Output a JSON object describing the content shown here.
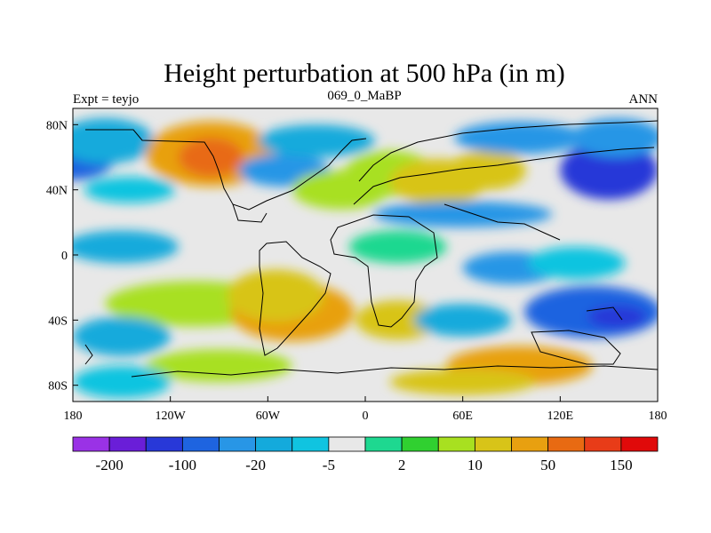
{
  "chart_data": {
    "type": "heatmap",
    "title": "Height perturbation at 500 hPa (in m)",
    "left_label": "Expt = teyjo",
    "center_label": "069_0_MaBP",
    "right_label": "ANN",
    "x_range": [
      -180,
      180
    ],
    "y_range": [
      -90,
      90
    ],
    "x_ticks": [
      {
        "value": -180,
        "label": "180"
      },
      {
        "value": -120,
        "label": "120W"
      },
      {
        "value": -60,
        "label": "60W"
      },
      {
        "value": 0,
        "label": "0"
      },
      {
        "value": 60,
        "label": "60E"
      },
      {
        "value": 120,
        "label": "120E"
      },
      {
        "value": 180,
        "label": "180"
      }
    ],
    "y_ticks": [
      {
        "value": 80,
        "label": "80N"
      },
      {
        "value": 40,
        "label": "40N"
      },
      {
        "value": 0,
        "label": "0"
      },
      {
        "value": -40,
        "label": "40S"
      },
      {
        "value": -80,
        "label": "80S"
      }
    ],
    "colorbar": {
      "colors": [
        "#9a32e6",
        "#6a1ed8",
        "#2838d8",
        "#1e64e0",
        "#2896e6",
        "#14aadc",
        "#10c4e0",
        "#e8e8e8",
        "#1ed890",
        "#30d030",
        "#a8e020",
        "#d8c418",
        "#e8a010",
        "#e86a12",
        "#e83c18",
        "#e00a0a"
      ],
      "labels": [
        {
          "text": "-200",
          "index": 1
        },
        {
          "text": "-100",
          "index": 3
        },
        {
          "text": "-20",
          "index": 5
        },
        {
          "text": "-5",
          "index": 7
        },
        {
          "text": "2",
          "index": 9
        },
        {
          "text": "10",
          "index": 11
        },
        {
          "text": "50",
          "index": 13
        },
        {
          "text": "150",
          "index": 15
        }
      ]
    },
    "anomalies": [
      {
        "lon": -180,
        "lat": 60,
        "level": 3,
        "rlon": 26,
        "rlat": 14
      },
      {
        "lon": -160,
        "lat": 70,
        "level": 5,
        "rlon": 30,
        "rlat": 14
      },
      {
        "lon": -95,
        "lat": 62,
        "level": 12,
        "rlon": 40,
        "rlat": 20
      },
      {
        "lon": -95,
        "lat": 60,
        "level": 13,
        "rlon": 20,
        "rlat": 12
      },
      {
        "lon": -145,
        "lat": 40,
        "level": 6,
        "rlon": 28,
        "rlat": 8
      },
      {
        "lon": -50,
        "lat": 52,
        "level": 4,
        "rlon": 28,
        "rlat": 10
      },
      {
        "lon": -30,
        "lat": 70,
        "level": 5,
        "rlon": 36,
        "rlat": 10
      },
      {
        "lon": -15,
        "lat": 40,
        "level": 10,
        "rlon": 30,
        "rlat": 12
      },
      {
        "lon": 15,
        "lat": 50,
        "level": 10,
        "rlon": 28,
        "rlat": 14
      },
      {
        "lon": 45,
        "lat": 45,
        "level": 11,
        "rlon": 30,
        "rlat": 14
      },
      {
        "lon": 75,
        "lat": 52,
        "level": 11,
        "rlon": 24,
        "rlat": 12
      },
      {
        "lon": 95,
        "lat": 72,
        "level": 4,
        "rlon": 40,
        "rlat": 10
      },
      {
        "lon": 150,
        "lat": 52,
        "level": 2,
        "rlon": 30,
        "rlat": 18
      },
      {
        "lon": 155,
        "lat": 72,
        "level": 4,
        "rlon": 28,
        "rlat": 12
      },
      {
        "lon": 60,
        "lat": 25,
        "level": 4,
        "rlon": 55,
        "rlat": 8
      },
      {
        "lon": -150,
        "lat": 5,
        "level": 5,
        "rlon": 35,
        "rlat": 10
      },
      {
        "lon": 20,
        "lat": 5,
        "level": 8,
        "rlon": 30,
        "rlat": 10
      },
      {
        "lon": 90,
        "lat": -8,
        "level": 4,
        "rlon": 30,
        "rlat": 10
      },
      {
        "lon": 130,
        "lat": -5,
        "level": 6,
        "rlon": 30,
        "rlat": 10
      },
      {
        "lon": -105,
        "lat": -30,
        "level": 10,
        "rlon": 55,
        "rlat": 14
      },
      {
        "lon": -45,
        "lat": -35,
        "level": 12,
        "rlon": 38,
        "rlat": 18
      },
      {
        "lon": -55,
        "lat": -25,
        "level": 11,
        "rlon": 30,
        "rlat": 16
      },
      {
        "lon": 20,
        "lat": -40,
        "level": 11,
        "rlon": 26,
        "rlat": 12
      },
      {
        "lon": -150,
        "lat": -50,
        "level": 5,
        "rlon": 30,
        "rlat": 12
      },
      {
        "lon": 60,
        "lat": -40,
        "level": 5,
        "rlon": 30,
        "rlat": 10
      },
      {
        "lon": 140,
        "lat": -35,
        "level": 3,
        "rlon": 42,
        "rlat": 16
      },
      {
        "lon": 155,
        "lat": -38,
        "level": 2,
        "rlon": 18,
        "rlat": 7
      },
      {
        "lon": -90,
        "lat": -68,
        "level": 10,
        "rlon": 45,
        "rlat": 10
      },
      {
        "lon": 95,
        "lat": -68,
        "level": 12,
        "rlon": 45,
        "rlat": 12
      },
      {
        "lon": 60,
        "lat": -78,
        "level": 11,
        "rlon": 45,
        "rlat": 8
      },
      {
        "lon": -150,
        "lat": -78,
        "level": 6,
        "rlon": 30,
        "rlat": 10
      }
    ]
  }
}
